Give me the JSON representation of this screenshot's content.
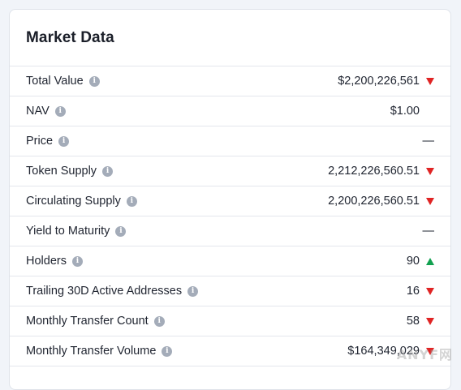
{
  "card": {
    "title": "Market Data",
    "rows": [
      {
        "label": "Total Value",
        "value": "$2,200,226,561",
        "trend": "down"
      },
      {
        "label": "NAV",
        "value": "$1.00",
        "trend": "none"
      },
      {
        "label": "Price",
        "value": "—",
        "trend": "empty"
      },
      {
        "label": "Token Supply",
        "value": "2,212,226,560.51",
        "trend": "down"
      },
      {
        "label": "Circulating Supply",
        "value": "2,200,226,560.51",
        "trend": "down"
      },
      {
        "label": "Yield to Maturity",
        "value": "—",
        "trend": "empty"
      },
      {
        "label": "Holders",
        "value": "90",
        "trend": "up"
      },
      {
        "label": "Trailing 30D Active Addresses",
        "value": "16",
        "trend": "down"
      },
      {
        "label": "Monthly Transfer Count",
        "value": "58",
        "trend": "down"
      },
      {
        "label": "Monthly Transfer Volume",
        "value": "$164,349,029",
        "trend": "down"
      }
    ]
  },
  "colors": {
    "down": "#e02424",
    "up": "#12a150"
  },
  "icons": {
    "info": "info-icon",
    "down": "triangle-down-icon",
    "up": "triangle-up-icon"
  },
  "watermark": "ANYF网"
}
